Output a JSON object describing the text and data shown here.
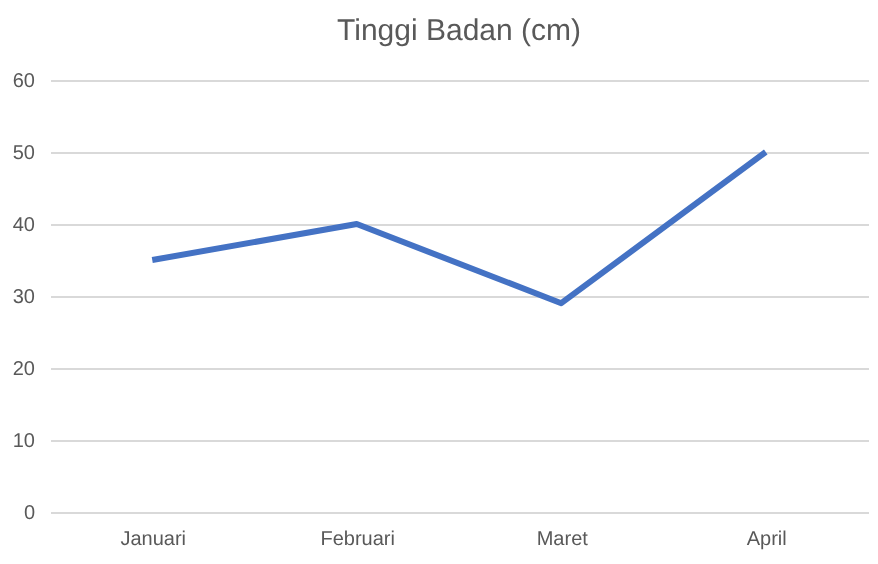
{
  "chart_data": {
    "type": "line",
    "title": "Tinggi Badan (cm)",
    "categories": [
      "Januari",
      "Februari",
      "Maret",
      "April"
    ],
    "series": [
      {
        "color": "#4472c4",
        "values": [
          35,
          40,
          29,
          50
        ]
      }
    ],
    "ylim": [
      0,
      60
    ],
    "yticks": [
      0,
      10,
      20,
      30,
      40,
      50,
      60
    ],
    "grid": "y",
    "marker": "none",
    "line_style": "solid"
  }
}
